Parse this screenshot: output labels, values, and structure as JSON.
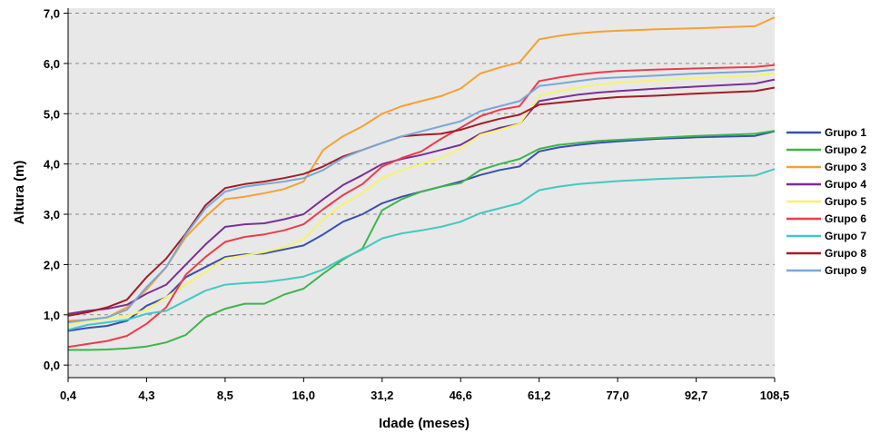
{
  "chart_data": {
    "type": "line",
    "xlabel": "Idade (meses)",
    "ylabel": "Altura (m)",
    "ylim": [
      -0.25,
      7.1
    ],
    "x": [
      "0,4",
      "",
      "",
      "",
      "4,3",
      "",
      "",
      "",
      "8,5",
      "",
      "",
      "",
      "16,0",
      "",
      "",
      "",
      "31,2",
      "",
      "",
      "",
      "46,6",
      "",
      "",
      "",
      "61,2",
      "",
      "",
      "",
      "77,0",
      "",
      "",
      "",
      "92,7",
      "",
      "",
      "",
      "108,5"
    ],
    "x_ticks": [
      "0,4",
      "4,3",
      "8,5",
      "16,0",
      "31,2",
      "46,6",
      "61,2",
      "77,0",
      "92,7",
      "108,5"
    ],
    "y_ticks": [
      "0,0",
      "1,0",
      "2,0",
      "3,0",
      "4,0",
      "5,0",
      "6,0",
      "7,0"
    ],
    "y_tick_values": [
      0,
      1,
      2,
      3,
      4,
      5,
      6,
      7
    ],
    "grid": "horizontal dashed",
    "legend_position": "right",
    "series": [
      {
        "name": "Grupo 1",
        "color": "#3a4fb0",
        "points": [
          [
            0,
            0.68
          ],
          [
            1,
            0.74
          ],
          [
            2,
            0.78
          ],
          [
            3,
            0.88
          ],
          [
            4,
            1.18
          ],
          [
            5,
            1.35
          ],
          [
            6,
            1.75
          ],
          [
            7,
            1.95
          ],
          [
            8,
            2.15
          ],
          [
            9,
            2.2
          ],
          [
            10,
            2.22
          ],
          [
            11,
            2.3
          ],
          [
            12,
            2.38
          ],
          [
            13,
            2.6
          ],
          [
            14,
            2.85
          ],
          [
            15,
            3.0
          ],
          [
            16,
            3.22
          ],
          [
            17,
            3.35
          ],
          [
            18,
            3.45
          ],
          [
            19,
            3.55
          ],
          [
            20,
            3.65
          ],
          [
            21,
            3.78
          ],
          [
            22,
            3.88
          ],
          [
            23,
            3.95
          ],
          [
            24,
            4.25
          ],
          [
            25,
            4.33
          ],
          [
            26,
            4.38
          ],
          [
            27,
            4.42
          ],
          [
            28,
            4.45
          ],
          [
            30,
            4.5
          ],
          [
            32,
            4.53
          ],
          [
            35,
            4.56
          ],
          [
            36,
            4.65
          ]
        ]
      },
      {
        "name": "Grupo 2",
        "color": "#3cb54a",
        "points": [
          [
            0,
            0.3
          ],
          [
            1,
            0.3
          ],
          [
            2,
            0.31
          ],
          [
            3,
            0.33
          ],
          [
            4,
            0.37
          ],
          [
            5,
            0.45
          ],
          [
            6,
            0.6
          ],
          [
            7,
            0.95
          ],
          [
            8,
            1.12
          ],
          [
            9,
            1.22
          ],
          [
            10,
            1.22
          ],
          [
            11,
            1.4
          ],
          [
            12,
            1.52
          ],
          [
            13,
            1.82
          ],
          [
            14,
            2.1
          ],
          [
            15,
            2.32
          ],
          [
            16,
            3.08
          ],
          [
            17,
            3.3
          ],
          [
            18,
            3.45
          ],
          [
            19,
            3.55
          ],
          [
            20,
            3.62
          ],
          [
            21,
            3.88
          ],
          [
            22,
            4.0
          ],
          [
            23,
            4.1
          ],
          [
            24,
            4.3
          ],
          [
            25,
            4.38
          ],
          [
            26,
            4.42
          ],
          [
            27,
            4.46
          ],
          [
            28,
            4.48
          ],
          [
            30,
            4.52
          ],
          [
            32,
            4.56
          ],
          [
            35,
            4.6
          ],
          [
            36,
            4.66
          ]
        ]
      },
      {
        "name": "Grupo 3",
        "color": "#f7a030",
        "points": [
          [
            0,
            0.88
          ],
          [
            1,
            0.9
          ],
          [
            2,
            0.95
          ],
          [
            3,
            1.15
          ],
          [
            4,
            1.5
          ],
          [
            5,
            1.95
          ],
          [
            6,
            2.55
          ],
          [
            7,
            2.95
          ],
          [
            8,
            3.3
          ],
          [
            9,
            3.35
          ],
          [
            10,
            3.42
          ],
          [
            11,
            3.5
          ],
          [
            12,
            3.65
          ],
          [
            13,
            4.28
          ],
          [
            14,
            4.55
          ],
          [
            15,
            4.75
          ],
          [
            16,
            5.0
          ],
          [
            17,
            5.15
          ],
          [
            18,
            5.25
          ],
          [
            19,
            5.35
          ],
          [
            20,
            5.5
          ],
          [
            21,
            5.8
          ],
          [
            22,
            5.92
          ],
          [
            23,
            6.02
          ],
          [
            24,
            6.48
          ],
          [
            25,
            6.55
          ],
          [
            26,
            6.6
          ],
          [
            27,
            6.63
          ],
          [
            28,
            6.65
          ],
          [
            30,
            6.68
          ],
          [
            32,
            6.7
          ],
          [
            35,
            6.74
          ],
          [
            36,
            6.92
          ]
        ]
      },
      {
        "name": "Grupo 4",
        "color": "#7b2f95",
        "points": [
          [
            0,
            1.02
          ],
          [
            1,
            1.08
          ],
          [
            2,
            1.12
          ],
          [
            3,
            1.2
          ],
          [
            4,
            1.42
          ],
          [
            5,
            1.6
          ],
          [
            6,
            2.0
          ],
          [
            7,
            2.4
          ],
          [
            8,
            2.75
          ],
          [
            9,
            2.8
          ],
          [
            10,
            2.82
          ],
          [
            11,
            2.9
          ],
          [
            12,
            3.0
          ],
          [
            13,
            3.3
          ],
          [
            14,
            3.58
          ],
          [
            15,
            3.78
          ],
          [
            16,
            4.0
          ],
          [
            17,
            4.1
          ],
          [
            18,
            4.18
          ],
          [
            19,
            4.28
          ],
          [
            20,
            4.38
          ],
          [
            21,
            4.6
          ],
          [
            22,
            4.72
          ],
          [
            23,
            4.8
          ],
          [
            24,
            5.25
          ],
          [
            25,
            5.32
          ],
          [
            26,
            5.38
          ],
          [
            27,
            5.42
          ],
          [
            28,
            5.45
          ],
          [
            30,
            5.5
          ],
          [
            32,
            5.54
          ],
          [
            35,
            5.6
          ],
          [
            36,
            5.68
          ]
        ]
      },
      {
        "name": "Grupo 5",
        "color": "#f7f36a",
        "points": [
          [
            0,
            0.8
          ],
          [
            1,
            0.88
          ],
          [
            2,
            0.92
          ],
          [
            3,
            0.98
          ],
          [
            4,
            1.1
          ],
          [
            5,
            1.35
          ],
          [
            6,
            1.6
          ],
          [
            7,
            1.85
          ],
          [
            8,
            2.12
          ],
          [
            9,
            2.18
          ],
          [
            10,
            2.25
          ],
          [
            11,
            2.35
          ],
          [
            12,
            2.5
          ],
          [
            13,
            2.9
          ],
          [
            14,
            3.2
          ],
          [
            15,
            3.42
          ],
          [
            16,
            3.72
          ],
          [
            17,
            3.88
          ],
          [
            18,
            4.0
          ],
          [
            19,
            4.12
          ],
          [
            20,
            4.3
          ],
          [
            21,
            4.58
          ],
          [
            22,
            4.68
          ],
          [
            23,
            4.8
          ],
          [
            24,
            5.35
          ],
          [
            25,
            5.45
          ],
          [
            26,
            5.52
          ],
          [
            27,
            5.58
          ],
          [
            28,
            5.62
          ],
          [
            30,
            5.67
          ],
          [
            32,
            5.71
          ],
          [
            35,
            5.76
          ],
          [
            36,
            5.8
          ]
        ]
      },
      {
        "name": "Grupo 6",
        "color": "#ee3b4a",
        "points": [
          [
            0,
            0.36
          ],
          [
            1,
            0.42
          ],
          [
            2,
            0.48
          ],
          [
            3,
            0.58
          ],
          [
            4,
            0.82
          ],
          [
            5,
            1.15
          ],
          [
            6,
            1.8
          ],
          [
            7,
            2.15
          ],
          [
            8,
            2.45
          ],
          [
            9,
            2.55
          ],
          [
            10,
            2.6
          ],
          [
            11,
            2.68
          ],
          [
            12,
            2.8
          ],
          [
            13,
            3.1
          ],
          [
            14,
            3.38
          ],
          [
            15,
            3.6
          ],
          [
            16,
            3.95
          ],
          [
            17,
            4.12
          ],
          [
            18,
            4.25
          ],
          [
            19,
            4.5
          ],
          [
            20,
            4.72
          ],
          [
            21,
            4.95
          ],
          [
            22,
            5.08
          ],
          [
            23,
            5.15
          ],
          [
            24,
            5.65
          ],
          [
            25,
            5.72
          ],
          [
            26,
            5.78
          ],
          [
            27,
            5.82
          ],
          [
            28,
            5.85
          ],
          [
            30,
            5.88
          ],
          [
            32,
            5.9
          ],
          [
            35,
            5.93
          ],
          [
            36,
            5.97
          ]
        ]
      },
      {
        "name": "Grupo 7",
        "color": "#42c8c4",
        "points": [
          [
            0,
            0.7
          ],
          [
            1,
            0.8
          ],
          [
            2,
            0.85
          ],
          [
            3,
            0.9
          ],
          [
            4,
            1.02
          ],
          [
            5,
            1.08
          ],
          [
            6,
            1.28
          ],
          [
            7,
            1.48
          ],
          [
            8,
            1.6
          ],
          [
            9,
            1.63
          ],
          [
            10,
            1.65
          ],
          [
            11,
            1.7
          ],
          [
            12,
            1.76
          ],
          [
            13,
            1.9
          ],
          [
            14,
            2.12
          ],
          [
            15,
            2.3
          ],
          [
            16,
            2.52
          ],
          [
            17,
            2.62
          ],
          [
            18,
            2.68
          ],
          [
            19,
            2.75
          ],
          [
            20,
            2.85
          ],
          [
            21,
            3.02
          ],
          [
            22,
            3.12
          ],
          [
            23,
            3.22
          ],
          [
            24,
            3.48
          ],
          [
            25,
            3.55
          ],
          [
            26,
            3.6
          ],
          [
            27,
            3.63
          ],
          [
            28,
            3.66
          ],
          [
            30,
            3.7
          ],
          [
            32,
            3.73
          ],
          [
            35,
            3.77
          ],
          [
            36,
            3.9
          ]
        ]
      },
      {
        "name": "Grupo 8",
        "color": "#a31c26",
        "points": [
          [
            0,
            0.98
          ],
          [
            1,
            1.05
          ],
          [
            2,
            1.15
          ],
          [
            3,
            1.3
          ],
          [
            4,
            1.75
          ],
          [
            5,
            2.12
          ],
          [
            6,
            2.62
          ],
          [
            7,
            3.18
          ],
          [
            8,
            3.52
          ],
          [
            9,
            3.6
          ],
          [
            10,
            3.65
          ],
          [
            11,
            3.72
          ],
          [
            12,
            3.8
          ],
          [
            13,
            3.95
          ],
          [
            14,
            4.15
          ],
          [
            15,
            4.28
          ],
          [
            16,
            4.42
          ],
          [
            17,
            4.55
          ],
          [
            18,
            4.58
          ],
          [
            19,
            4.6
          ],
          [
            20,
            4.68
          ],
          [
            21,
            4.8
          ],
          [
            22,
            4.9
          ],
          [
            23,
            4.98
          ],
          [
            24,
            5.18
          ],
          [
            25,
            5.22
          ],
          [
            26,
            5.26
          ],
          [
            27,
            5.3
          ],
          [
            28,
            5.33
          ],
          [
            30,
            5.36
          ],
          [
            32,
            5.4
          ],
          [
            35,
            5.45
          ],
          [
            36,
            5.52
          ]
        ]
      },
      {
        "name": "Grupo 9",
        "color": "#7aa8d6",
        "points": [
          [
            0,
            0.85
          ],
          [
            1,
            0.9
          ],
          [
            2,
            0.95
          ],
          [
            3,
            1.1
          ],
          [
            4,
            1.55
          ],
          [
            5,
            1.95
          ],
          [
            6,
            2.6
          ],
          [
            7,
            3.12
          ],
          [
            8,
            3.45
          ],
          [
            9,
            3.55
          ],
          [
            10,
            3.6
          ],
          [
            11,
            3.65
          ],
          [
            12,
            3.72
          ],
          [
            13,
            3.88
          ],
          [
            14,
            4.12
          ],
          [
            15,
            4.28
          ],
          [
            16,
            4.42
          ],
          [
            17,
            4.55
          ],
          [
            18,
            4.65
          ],
          [
            19,
            4.75
          ],
          [
            20,
            4.85
          ],
          [
            21,
            5.05
          ],
          [
            22,
            5.15
          ],
          [
            23,
            5.25
          ],
          [
            24,
            5.55
          ],
          [
            25,
            5.6
          ],
          [
            26,
            5.65
          ],
          [
            27,
            5.7
          ],
          [
            28,
            5.72
          ],
          [
            30,
            5.76
          ],
          [
            32,
            5.8
          ],
          [
            35,
            5.84
          ],
          [
            36,
            5.88
          ]
        ]
      }
    ]
  }
}
